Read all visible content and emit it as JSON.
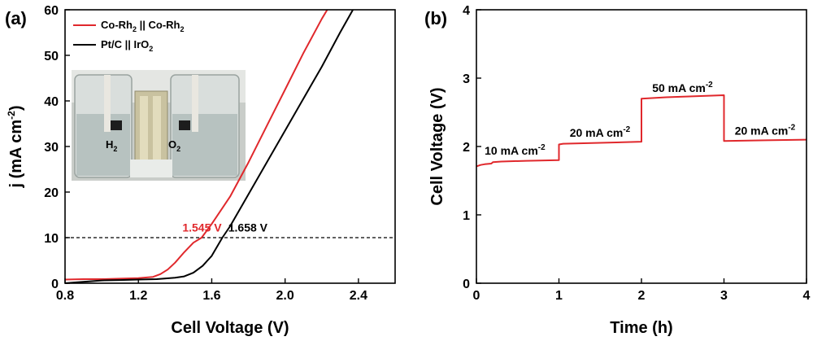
{
  "colors": {
    "red": "#e0282c",
    "black": "#000000"
  },
  "chart_data": [
    {
      "panel": "(a)",
      "type": "line",
      "xlabel": "Cell Voltage (V)",
      "ylabel_main": "j (mA cm",
      "ylabel_sup": "-2",
      "ylabel_end": ")",
      "xlim": [
        0.8,
        2.6
      ],
      "ylim": [
        0,
        60
      ],
      "xticks": [
        0.8,
        1.2,
        1.6,
        2.0,
        2.4
      ],
      "xtick_labels": [
        "0.8",
        "1.2",
        "1.6",
        "2.0",
        "2.4"
      ],
      "yticks": [
        0,
        10,
        20,
        30,
        40,
        50,
        60
      ],
      "ytick_labels": [
        "0",
        "10",
        "20",
        "30",
        "40",
        "50",
        "60"
      ],
      "legend_position": "top-left",
      "reference_line": {
        "y": 10,
        "style": "dashed"
      },
      "series": [
        {
          "name_parts": [
            "Co-Rh",
            "2",
            " || Co-Rh",
            "2"
          ],
          "color": "red",
          "points": [
            [
              0.8,
              0.8
            ],
            [
              0.9,
              0.9
            ],
            [
              1.0,
              0.9
            ],
            [
              1.1,
              1.0
            ],
            [
              1.2,
              1.1
            ],
            [
              1.28,
              1.4
            ],
            [
              1.32,
              2.0
            ],
            [
              1.36,
              3.0
            ],
            [
              1.4,
              4.5
            ],
            [
              1.45,
              6.8
            ],
            [
              1.5,
              8.9
            ],
            [
              1.545,
              10.0
            ],
            [
              1.6,
              13.0
            ],
            [
              1.7,
              19.0
            ],
            [
              1.8,
              26.5
            ],
            [
              1.9,
              34.5
            ],
            [
              2.0,
              42.5
            ],
            [
              2.1,
              50.5
            ],
            [
              2.2,
              58.0
            ],
            [
              2.23,
              60.0
            ]
          ]
        },
        {
          "name_parts": [
            "Pt/C || IrO",
            "2"
          ],
          "color": "black",
          "points": [
            [
              0.8,
              0.0
            ],
            [
              0.9,
              0.3
            ],
            [
              1.0,
              0.6
            ],
            [
              1.1,
              0.7
            ],
            [
              1.2,
              0.8
            ],
            [
              1.3,
              0.9
            ],
            [
              1.4,
              1.2
            ],
            [
              1.45,
              1.5
            ],
            [
              1.5,
              2.3
            ],
            [
              1.55,
              3.8
            ],
            [
              1.6,
              6.0
            ],
            [
              1.658,
              10.0
            ],
            [
              1.7,
              12.5
            ],
            [
              1.8,
              19.5
            ],
            [
              1.9,
              26.5
            ],
            [
              2.0,
              33.5
            ],
            [
              2.1,
              40.5
            ],
            [
              2.2,
              47.5
            ],
            [
              2.3,
              55.0
            ],
            [
              2.37,
              60.0
            ]
          ]
        }
      ],
      "annotations": [
        {
          "text": "1.545 V",
          "color": "red",
          "x": 1.44,
          "y": 11.3
        },
        {
          "text": "1.658 V",
          "color": "black",
          "x": 1.69,
          "y": 11.3
        }
      ],
      "inset_labels": [
        {
          "main": "H",
          "sub": "2"
        },
        {
          "main": "O",
          "sub": "2"
        }
      ]
    },
    {
      "panel": "(b)",
      "type": "line",
      "xlabel": "Time (h)",
      "ylabel": "Cell Voltage (V)",
      "xlim": [
        0,
        4
      ],
      "ylim": [
        0,
        4
      ],
      "xticks": [
        0,
        1,
        2,
        3,
        4
      ],
      "xtick_labels": [
        "0",
        "1",
        "2",
        "3",
        "4"
      ],
      "yticks": [
        0,
        1,
        2,
        3,
        4
      ],
      "ytick_labels": [
        "0",
        "1",
        "2",
        "3",
        "4"
      ],
      "series": [
        {
          "color": "red",
          "points": [
            [
              0.0,
              1.71
            ],
            [
              0.05,
              1.73
            ],
            [
              0.1,
              1.74
            ],
            [
              0.18,
              1.75
            ],
            [
              0.2,
              1.77
            ],
            [
              0.3,
              1.78
            ],
            [
              0.6,
              1.79
            ],
            [
              1.0,
              1.8
            ],
            [
              1.0,
              2.03
            ],
            [
              1.05,
              2.04
            ],
            [
              1.4,
              2.05
            ],
            [
              2.0,
              2.07
            ],
            [
              2.0,
              2.7
            ],
            [
              2.3,
              2.72
            ],
            [
              3.0,
              2.75
            ],
            [
              3.0,
              2.08
            ],
            [
              3.5,
              2.09
            ],
            [
              4.0,
              2.1
            ]
          ]
        }
      ],
      "annotations": [
        {
          "main": "10 mA cm",
          "sup": "-2",
          "x": 0.1,
          "y": 1.88
        },
        {
          "main": "20 mA cm",
          "sup": "-2",
          "x": 1.13,
          "y": 2.14
        },
        {
          "main": "50 mA cm",
          "sup": "-2",
          "x": 2.13,
          "y": 2.8
        },
        {
          "main": "20 mA cm",
          "sup": "-2",
          "x": 3.13,
          "y": 2.17
        }
      ]
    }
  ]
}
